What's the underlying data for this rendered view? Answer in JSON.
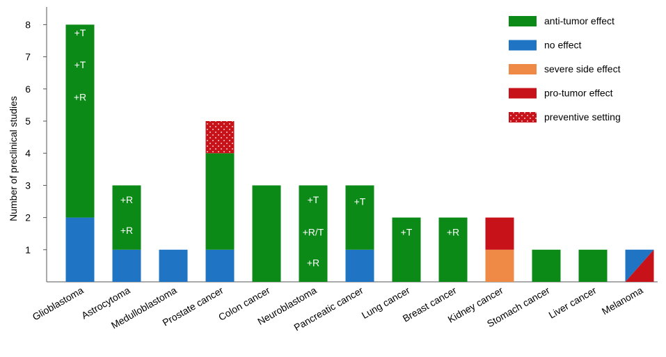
{
  "chart_data": {
    "type": "bar",
    "stacked": true,
    "title": "",
    "xlabel": "",
    "ylabel": "Number of preclinical studies",
    "ylim": [
      0,
      8.5
    ],
    "yticks": [
      1,
      2,
      3,
      4,
      5,
      6,
      7,
      8
    ],
    "grid": false,
    "legend_position": "top-right",
    "categories": [
      "Glioblastoma",
      "Astrocytoma",
      "Medulloblastoma",
      "Prostate cancer",
      "Colon cancer",
      "Neuroblastoma",
      "Pancreatic cancer",
      "Lung cancer",
      "Breast cancer",
      "Kidney cancer",
      "Stomach cancer",
      "Liver cancer",
      "Melanoma"
    ],
    "series": [
      {
        "name": "no effect",
        "color": "#1f74c4",
        "values": [
          2,
          1,
          1,
          1,
          0,
          0,
          1,
          0,
          0,
          0,
          0,
          0,
          1
        ]
      },
      {
        "name": "severe side effect",
        "color": "#ee8a45",
        "values": [
          0,
          0,
          0,
          0,
          0,
          0,
          0,
          0,
          0,
          1,
          0,
          0,
          0
        ]
      },
      {
        "name": "anti-tumor effect",
        "color": "#0b8a18",
        "values": [
          6,
          2,
          0,
          3,
          3,
          3,
          2,
          2,
          2,
          0,
          1,
          1,
          0
        ]
      },
      {
        "name": "pro-tumor effect",
        "color": "#c8121a",
        "values": [
          0,
          0,
          0,
          0,
          0,
          0,
          0,
          0,
          0,
          1,
          0,
          0,
          0
        ]
      },
      {
        "name": "preventive setting",
        "color": "#c8121a",
        "pattern": "dotted",
        "values": [
          0,
          0,
          0,
          1,
          0,
          0,
          0,
          0,
          0,
          0,
          0,
          0,
          0
        ]
      }
    ],
    "split_bars": [
      {
        "category": "Melanoma",
        "value": 1,
        "colors": [
          "#1f74c4",
          "#c8121a"
        ],
        "series": [
          "no effect",
          "pro-tumor effect"
        ]
      }
    ],
    "annotations": [
      {
        "category": "Glioblastoma",
        "y": 7.75,
        "text": "+T"
      },
      {
        "category": "Glioblastoma",
        "y": 6.75,
        "text": "+T"
      },
      {
        "category": "Glioblastoma",
        "y": 5.75,
        "text": "+R"
      },
      {
        "category": "Astrocytoma",
        "y": 2.55,
        "text": "+R"
      },
      {
        "category": "Astrocytoma",
        "y": 1.6,
        "text": "+R"
      },
      {
        "category": "Neuroblastoma",
        "y": 2.55,
        "text": "+T"
      },
      {
        "category": "Neuroblastoma",
        "y": 1.55,
        "text": "+R/T"
      },
      {
        "category": "Neuroblastoma",
        "y": 0.6,
        "text": "+R"
      },
      {
        "category": "Pancreatic cancer",
        "y": 2.5,
        "text": "+T"
      },
      {
        "category": "Lung cancer",
        "y": 1.55,
        "text": "+T"
      },
      {
        "category": "Breast cancer",
        "y": 1.55,
        "text": "+R"
      }
    ],
    "legend": [
      {
        "label": "anti-tumor effect",
        "color": "#0b8a18"
      },
      {
        "label": "no effect",
        "color": "#1f74c4"
      },
      {
        "label": "severe side effect",
        "color": "#ee8a45"
      },
      {
        "label": "pro-tumor effect",
        "color": "#c8121a"
      },
      {
        "label": "preventive setting",
        "color": "#c8121a",
        "pattern": "dotted"
      }
    ]
  }
}
